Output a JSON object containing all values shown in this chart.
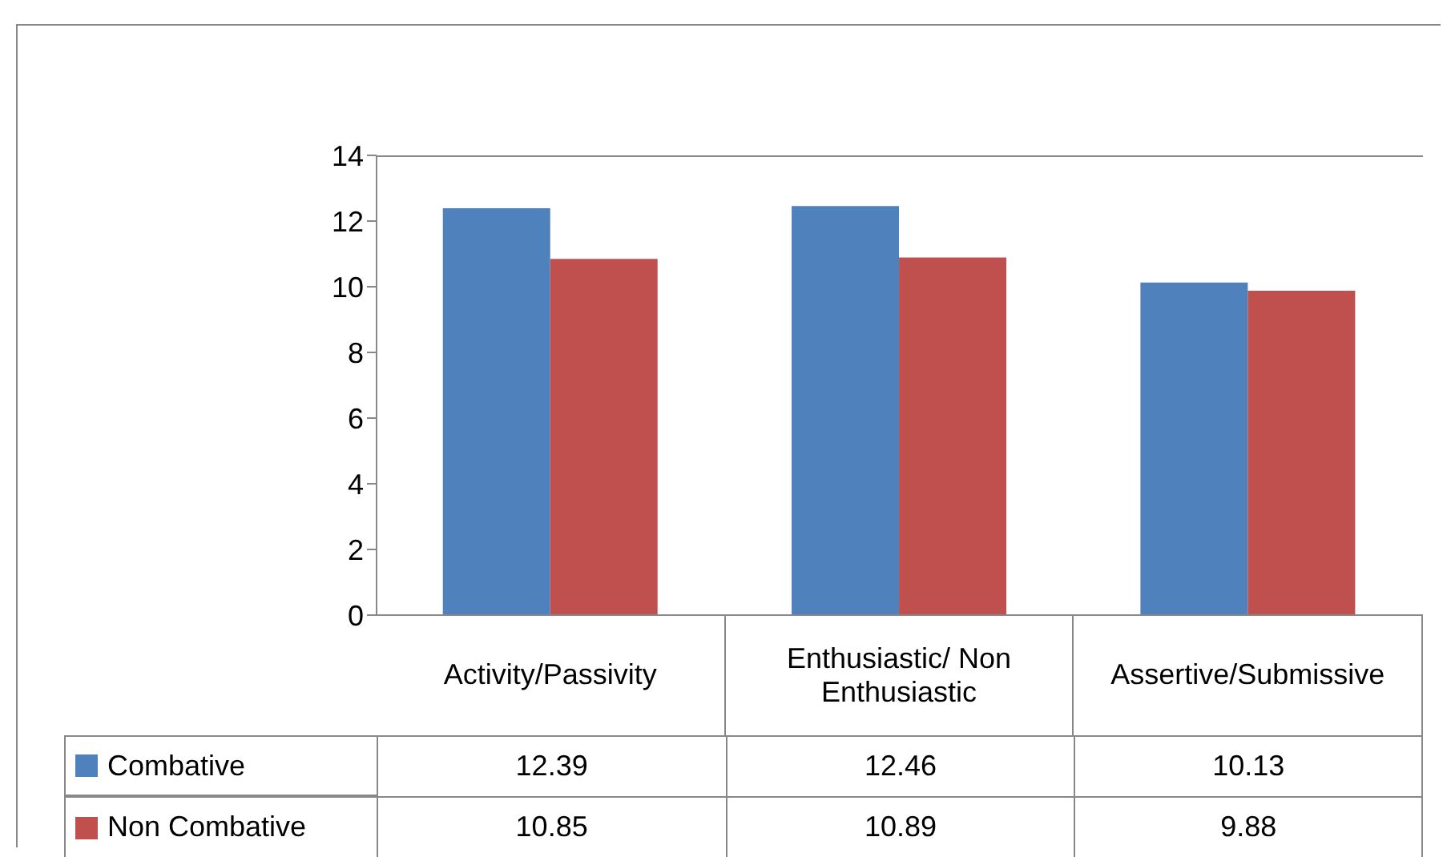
{
  "chart_data": {
    "type": "bar",
    "categories": [
      "Activity/Passivity",
      "Enthusiastic/ Non Enthusiastic",
      "Assertive/Submissive"
    ],
    "series": [
      {
        "name": "Combative",
        "color": "#4f81bd",
        "values": [
          12.39,
          12.46,
          10.13
        ]
      },
      {
        "name": "Non Combative",
        "color": "#c0504d",
        "values": [
          10.85,
          10.89,
          9.88
        ]
      }
    ],
    "ylim": [
      0,
      14
    ],
    "yticks": [
      0,
      2,
      4,
      6,
      8,
      10,
      12,
      14
    ],
    "grid": false,
    "legend": "bottom left",
    "data_labels": true
  }
}
